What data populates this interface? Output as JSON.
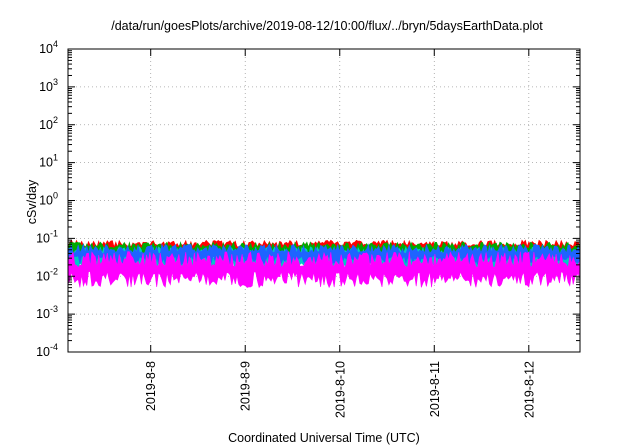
{
  "chart_data": {
    "type": "area",
    "title": "/data/run/goesPlots/archive/2019-08-12/10:00/flux/../bryn/5daysEarthData.plot",
    "xlabel": "Coordinated Universal Time (UTC)",
    "ylabel": "cSv/day",
    "y_scale": "log",
    "ylim": [
      0.0001,
      10000
    ],
    "xlim": [
      "2019-08-07 03:00",
      "2019-08-12 13:00"
    ],
    "grid": true,
    "legend": "none",
    "y_ticks": [
      {
        "base": "10",
        "exp": "-4",
        "value": 0.0001
      },
      {
        "base": "10",
        "exp": "-3",
        "value": 0.001
      },
      {
        "base": "10",
        "exp": "-2",
        "value": 0.01
      },
      {
        "base": "10",
        "exp": "-1",
        "value": 0.1
      },
      {
        "base": "10",
        "exp": "0",
        "value": 1
      },
      {
        "base": "10",
        "exp": "1",
        "value": 10
      },
      {
        "base": "10",
        "exp": "2",
        "value": 100
      },
      {
        "base": "10",
        "exp": "3",
        "value": 1000
      },
      {
        "base": "10",
        "exp": "4",
        "value": 10000
      }
    ],
    "x_ticks": [
      "2019-8-8",
      "2019-8-9",
      "2019-8-10",
      "2019-8-11",
      "2019-8-12"
    ],
    "series": [
      {
        "color": "#ff0000",
        "typical_min": 0.035,
        "typical_max": 0.09
      },
      {
        "color": "#00aa00",
        "typical_min": 0.03,
        "typical_max": 0.08
      },
      {
        "color": "#00c8c8",
        "typical_min": 0.012,
        "typical_max": 0.06
      },
      {
        "color": "#1e64ff",
        "typical_min": 0.02,
        "typical_max": 0.07
      },
      {
        "color": "#ff00ff",
        "typical_min": 0.005,
        "typical_max": 0.045
      }
    ]
  }
}
